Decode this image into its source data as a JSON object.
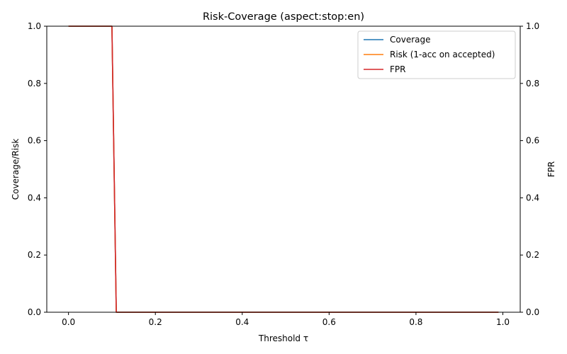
{
  "chart_data": {
    "type": "line",
    "title": "Risk-Coverage (aspect:stop:en)",
    "xlabel": "Threshold τ",
    "ylabel": "Coverage/Risk",
    "y2label": "FPR",
    "xlim": [
      -0.05,
      1.04
    ],
    "ylim": [
      0,
      1
    ],
    "y2lim": [
      0,
      1
    ],
    "xticks": [
      "0.0",
      "0.2",
      "0.4",
      "0.6",
      "0.8",
      "1.0"
    ],
    "xtick_values": [
      0.0,
      0.2,
      0.4,
      0.6,
      0.8,
      1.0
    ],
    "yticks": [
      "0.0",
      "0.2",
      "0.4",
      "0.6",
      "0.8",
      "1.0"
    ],
    "ytick_values": [
      0.0,
      0.2,
      0.4,
      0.6,
      0.8,
      1.0
    ],
    "y2ticks": [
      "0.0",
      "0.2",
      "0.4",
      "0.6",
      "0.8",
      "1.0"
    ],
    "grid": false,
    "legend_position": "top-right",
    "series": [
      {
        "name": "Coverage",
        "color": "#1f77b4",
        "axis": "left",
        "x": [
          0.0,
          0.1,
          0.11,
          0.2,
          0.4,
          0.6,
          0.8,
          0.99
        ],
        "y": [
          1.0,
          1.0,
          0.0,
          0.0,
          0.0,
          0.0,
          0.0,
          0.0
        ]
      },
      {
        "name": "Risk (1-acc on accepted)",
        "color": "#ff7f0e",
        "axis": "left",
        "x": [
          0.0,
          0.1,
          0.11,
          0.2,
          0.4,
          0.6,
          0.8,
          0.99
        ],
        "y": [
          1.0,
          1.0,
          0.0,
          0.0,
          0.0,
          0.0,
          0.0,
          0.0
        ]
      },
      {
        "name": "FPR",
        "color": "#d62728",
        "axis": "right",
        "x": [
          0.0,
          0.1,
          0.11,
          0.2,
          0.4,
          0.6,
          0.8,
          0.99
        ],
        "y": [
          1.0,
          1.0,
          0.0,
          0.0,
          0.0,
          0.0,
          0.0,
          0.0
        ]
      }
    ]
  }
}
